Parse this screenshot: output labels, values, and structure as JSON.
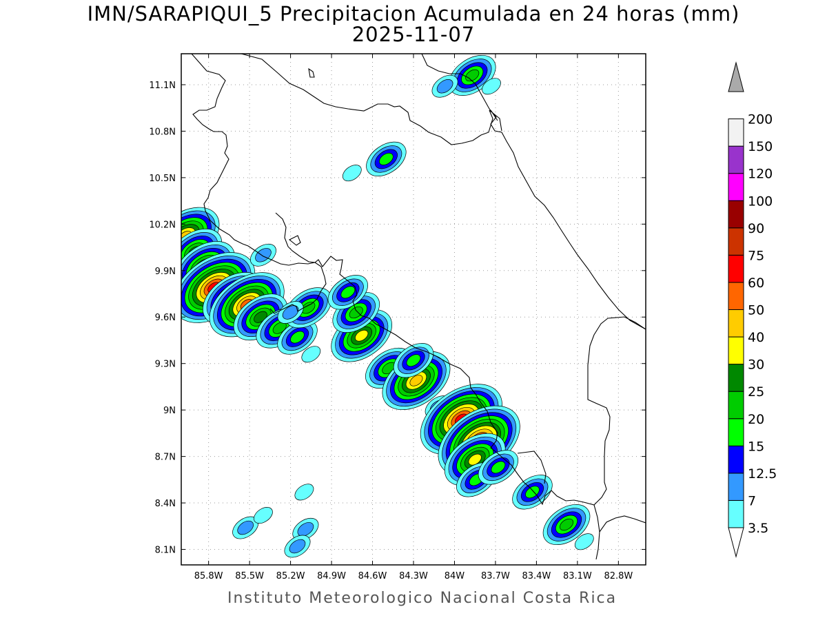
{
  "title": {
    "line1": "IMN/SARAPIQUI_5 Precipitacion Acumulada en 24 horas (mm)",
    "line2": "2025-11-07"
  },
  "footer": "Instituto Meteorologico Nacional Costa Rica",
  "map": {
    "lon_range": [
      -86.0,
      -82.6
    ],
    "lat_range": [
      8.0,
      11.3
    ],
    "gridlines": true,
    "lon_ticks": [
      {
        "value": -85.8,
        "label": "85.8W"
      },
      {
        "value": -85.5,
        "label": "85.5W"
      },
      {
        "value": -85.2,
        "label": "85.2W"
      },
      {
        "value": -84.9,
        "label": "84.9W"
      },
      {
        "value": -84.6,
        "label": "84.6W"
      },
      {
        "value": -84.3,
        "label": "84.3W"
      },
      {
        "value": -84.0,
        "label": "84W"
      },
      {
        "value": -83.7,
        "label": "83.7W"
      },
      {
        "value": -83.4,
        "label": "83.4W"
      },
      {
        "value": -83.1,
        "label": "83.1W"
      },
      {
        "value": -82.8,
        "label": "82.8W"
      }
    ],
    "lat_ticks": [
      {
        "value": 8.1,
        "label": "8.1N"
      },
      {
        "value": 8.4,
        "label": "8.4N"
      },
      {
        "value": 8.7,
        "label": "8.7N"
      },
      {
        "value": 9.0,
        "label": "9N"
      },
      {
        "value": 9.3,
        "label": "9.3N"
      },
      {
        "value": 9.6,
        "label": "9.6N"
      },
      {
        "value": 9.9,
        "label": "9.9N"
      },
      {
        "value": 10.2,
        "label": "10.2N"
      },
      {
        "value": 10.5,
        "label": "10.5N"
      },
      {
        "value": 10.8,
        "label": "10.8N"
      },
      {
        "value": 11.1,
        "label": "11.1N"
      }
    ],
    "precip_cells": [
      {
        "lon": -85.97,
        "lat": 10.12,
        "max": 45
      },
      {
        "lon": -85.9,
        "lat": 10.02,
        "max": 25
      },
      {
        "lon": -85.83,
        "lat": 9.92,
        "max": 30
      },
      {
        "lon": -85.76,
        "lat": 9.79,
        "max": 60
      },
      {
        "lon": -85.62,
        "lat": 9.72,
        "max": 35
      },
      {
        "lon": -85.52,
        "lat": 9.68,
        "max": 50
      },
      {
        "lon": -85.42,
        "lat": 9.6,
        "max": 25
      },
      {
        "lon": -85.28,
        "lat": 9.53,
        "max": 20
      },
      {
        "lon": -85.15,
        "lat": 9.47,
        "max": 15
      },
      {
        "lon": -85.05,
        "lat": 9.36,
        "max": 5
      },
      {
        "lon": -85.07,
        "lat": 9.66,
        "max": 20
      },
      {
        "lon": -85.2,
        "lat": 9.63,
        "max": 12
      },
      {
        "lon": -84.68,
        "lat": 9.48,
        "max": 30
      },
      {
        "lon": -84.72,
        "lat": 9.63,
        "max": 20
      },
      {
        "lon": -84.78,
        "lat": 9.76,
        "max": 15
      },
      {
        "lon": -84.48,
        "lat": 9.27,
        "max": 20
      },
      {
        "lon": -84.28,
        "lat": 9.19,
        "max": 40
      },
      {
        "lon": -84.3,
        "lat": 9.32,
        "max": 15
      },
      {
        "lon": -84.12,
        "lat": 9.02,
        "max": 8
      },
      {
        "lon": -83.95,
        "lat": 8.94,
        "max": 60
      },
      {
        "lon": -83.82,
        "lat": 8.8,
        "max": 60
      },
      {
        "lon": -83.85,
        "lat": 8.68,
        "max": 30
      },
      {
        "lon": -83.84,
        "lat": 8.55,
        "max": 15
      },
      {
        "lon": -83.68,
        "lat": 8.63,
        "max": 15
      },
      {
        "lon": -83.43,
        "lat": 8.47,
        "max": 15
      },
      {
        "lon": -83.18,
        "lat": 8.26,
        "max": 20
      },
      {
        "lon": -83.05,
        "lat": 8.15,
        "max": 5
      },
      {
        "lon": -85.53,
        "lat": 8.24,
        "max": 7
      },
      {
        "lon": -85.4,
        "lat": 8.32,
        "max": 5
      },
      {
        "lon": -85.09,
        "lat": 8.23,
        "max": 12
      },
      {
        "lon": -85.15,
        "lat": 8.12,
        "max": 7
      },
      {
        "lon": -85.1,
        "lat": 8.47,
        "max": 5
      },
      {
        "lon": -84.5,
        "lat": 10.62,
        "max": 15
      },
      {
        "lon": -84.75,
        "lat": 10.53,
        "max": 5
      },
      {
        "lon": -83.87,
        "lat": 11.16,
        "max": 20
      },
      {
        "lon": -84.07,
        "lat": 11.09,
        "max": 7
      },
      {
        "lon": -83.73,
        "lat": 11.09,
        "max": 5
      },
      {
        "lon": -85.4,
        "lat": 10.0,
        "max": 7
      }
    ]
  },
  "legend": {
    "levels": [
      {
        "label": "3.5",
        "color": "#66ffff"
      },
      {
        "label": "7",
        "color": "#3399ff"
      },
      {
        "label": "12.5",
        "color": "#0000ff"
      },
      {
        "label": "15",
        "color": "#00ff00"
      },
      {
        "label": "20",
        "color": "#00cc00"
      },
      {
        "label": "25",
        "color": "#008800"
      },
      {
        "label": "30",
        "color": "#ffff00"
      },
      {
        "label": "40",
        "color": "#ffcc00"
      },
      {
        "label": "50",
        "color": "#ff6600"
      },
      {
        "label": "60",
        "color": "#ff0000"
      },
      {
        "label": "75",
        "color": "#cc3300"
      },
      {
        "label": "90",
        "color": "#990000"
      },
      {
        "label": "100",
        "color": "#ff00ff"
      },
      {
        "label": "120",
        "color": "#9933cc"
      },
      {
        "label": "150",
        "color": "#f2f2f2"
      },
      {
        "label": "200",
        "color": "#aaaaaa"
      }
    ]
  }
}
